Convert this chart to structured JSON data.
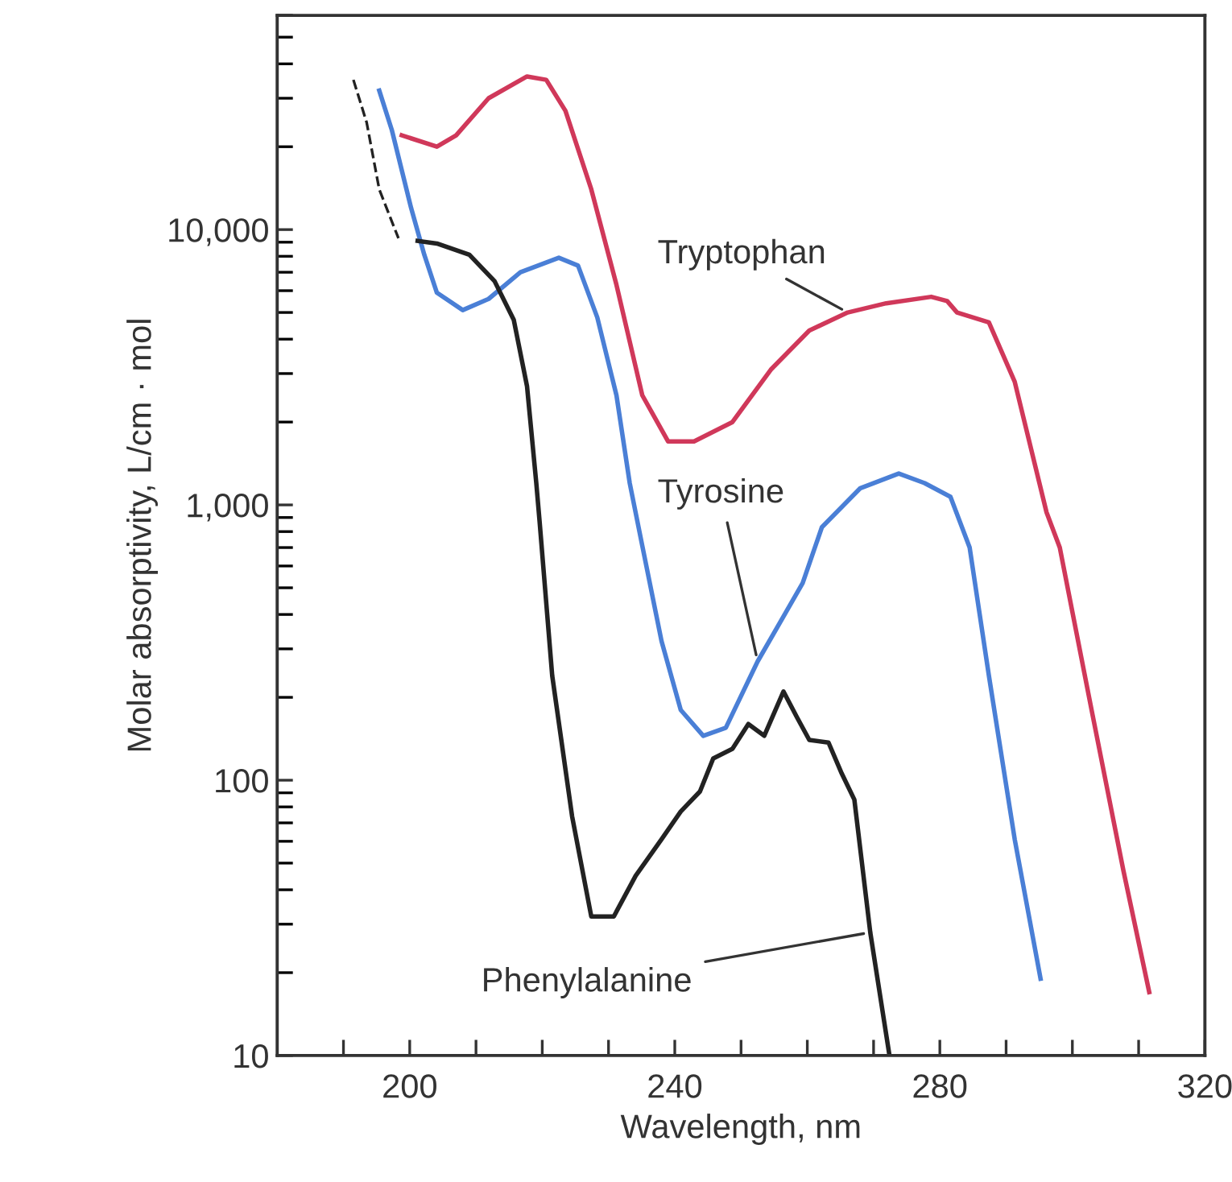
{
  "chart_data": {
    "type": "line",
    "xlabel": "Wavelength, nm",
    "ylabel": "Molar absorptivity, L/cm · mol",
    "log": "y",
    "grid": false,
    "legend": false,
    "marker": "none",
    "xlim": [
      180,
      320
    ],
    "ylim": [
      10,
      60000
    ],
    "xticks": [
      {
        "value": 190,
        "label": null
      },
      200,
      {
        "value": 210,
        "label": null
      },
      {
        "value": 220,
        "label": null
      },
      {
        "value": 230,
        "label": null
      },
      240,
      {
        "value": 250,
        "label": null
      },
      {
        "value": 260,
        "label": null
      },
      {
        "value": 270,
        "label": null
      },
      280,
      {
        "value": 290,
        "label": null
      },
      {
        "value": 300,
        "label": null
      },
      {
        "value": 310,
        "label": null
      },
      320
    ],
    "yticks": [
      {
        "value": 10,
        "label": "10"
      },
      {
        "value": 100,
        "label": "100"
      },
      {
        "value": 1000,
        "label": "1,000"
      },
      {
        "value": 10000,
        "label": "10,000"
      }
    ],
    "series": [
      {
        "name": "Tryptophan",
        "color": "#d0385a",
        "line_style": "solid",
        "x": [
          198.8,
          204.1,
          207.0,
          211.9,
          217.7,
          220.6,
          223.5,
          227.4,
          231.2,
          235.1,
          239.0,
          242.9,
          248.7,
          254.5,
          260.3,
          266.1,
          271.9,
          278.7,
          281.1,
          282.6,
          287.4,
          291.3,
          296.1,
          298.1,
          302.9,
          307.7,
          311.6
        ],
        "values": [
          22000,
          20000,
          22000,
          30000,
          36000,
          35000,
          27000,
          14000,
          6300,
          2500,
          1700,
          1700,
          2000,
          3100,
          4300,
          5000,
          5400,
          5700,
          5500,
          5000,
          4600,
          2800,
          940,
          700,
          180,
          47,
          17
        ]
      },
      {
        "name": "Tyrosine",
        "color": "#4a7fd6",
        "line_style": "solid",
        "x": [
          195.4,
          197.3,
          200.2,
          202.2,
          204.1,
          208.0,
          211.9,
          216.7,
          222.5,
          225.4,
          228.3,
          231.2,
          233.2,
          235.1,
          238.0,
          240.9,
          244.3,
          247.7,
          252.5,
          259.3,
          262.2,
          268.0,
          273.8,
          277.7,
          281.6,
          284.5,
          287.4,
          291.3,
          295.2
        ],
        "values": [
          32000,
          23000,
          12000,
          8100,
          5900,
          5100,
          5600,
          7000,
          7900,
          7400,
          4800,
          2500,
          1200,
          710,
          320,
          180,
          145,
          155,
          270,
          520,
          830,
          1150,
          1300,
          1200,
          1070,
          700,
          240,
          61,
          19
        ]
      },
      {
        "name": "Phenylalanine",
        "color": "#222222",
        "line_style": "solid",
        "x": [
          201.2,
          204.1,
          209.0,
          212.8,
          215.7,
          217.7,
          219.1,
          219.6,
          221.5,
          224.5,
          227.4,
          230.8,
          234.1,
          238.0,
          240.9,
          243.8,
          245.8,
          248.7,
          251.1,
          253.5,
          256.4,
          258.4,
          260.3,
          263.2,
          265.1,
          267.1,
          269.5,
          272.4
        ],
        "values": [
          9100,
          8900,
          8100,
          6500,
          4700,
          2700,
          1200,
          870,
          240,
          74,
          32,
          32,
          45,
          61,
          77,
          91,
          120,
          130,
          160,
          145,
          210,
          170,
          140,
          137,
          107,
          85,
          28,
          10
        ]
      },
      {
        "color": "#222222",
        "line_style": "dashed",
        "x": [
          191.5,
          193.5,
          195.4,
          198.3
        ],
        "values": [
          35000,
          24500,
          14000,
          9300
        ]
      }
    ]
  }
}
